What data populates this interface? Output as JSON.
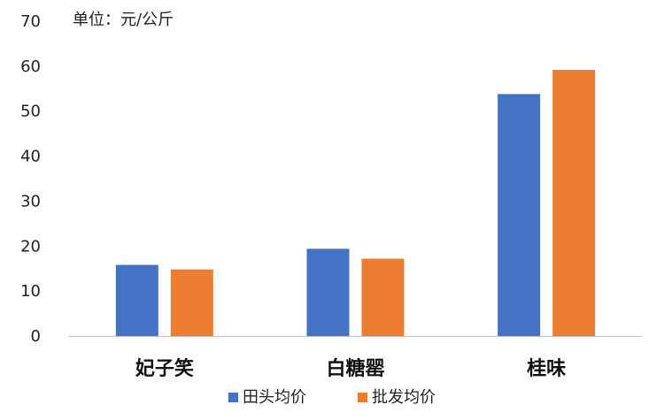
{
  "chart_data": {
    "type": "bar",
    "unit_note": "单位：元/公斤",
    "categories": [
      "妃子笑",
      "白糖罂",
      "桂味"
    ],
    "series": [
      {
        "name": "田头均价",
        "values": [
          15.8,
          19.4,
          53.8
        ],
        "color": "#4472C4"
      },
      {
        "name": "批发均价",
        "values": [
          14.8,
          17.2,
          59.2
        ],
        "color": "#ED7D31"
      }
    ],
    "ylim": [
      0,
      70
    ],
    "yticks": [
      "0",
      "10",
      "20",
      "30",
      "40",
      "50",
      "60",
      "70"
    ],
    "grid": false,
    "legend_position": "bottom"
  }
}
